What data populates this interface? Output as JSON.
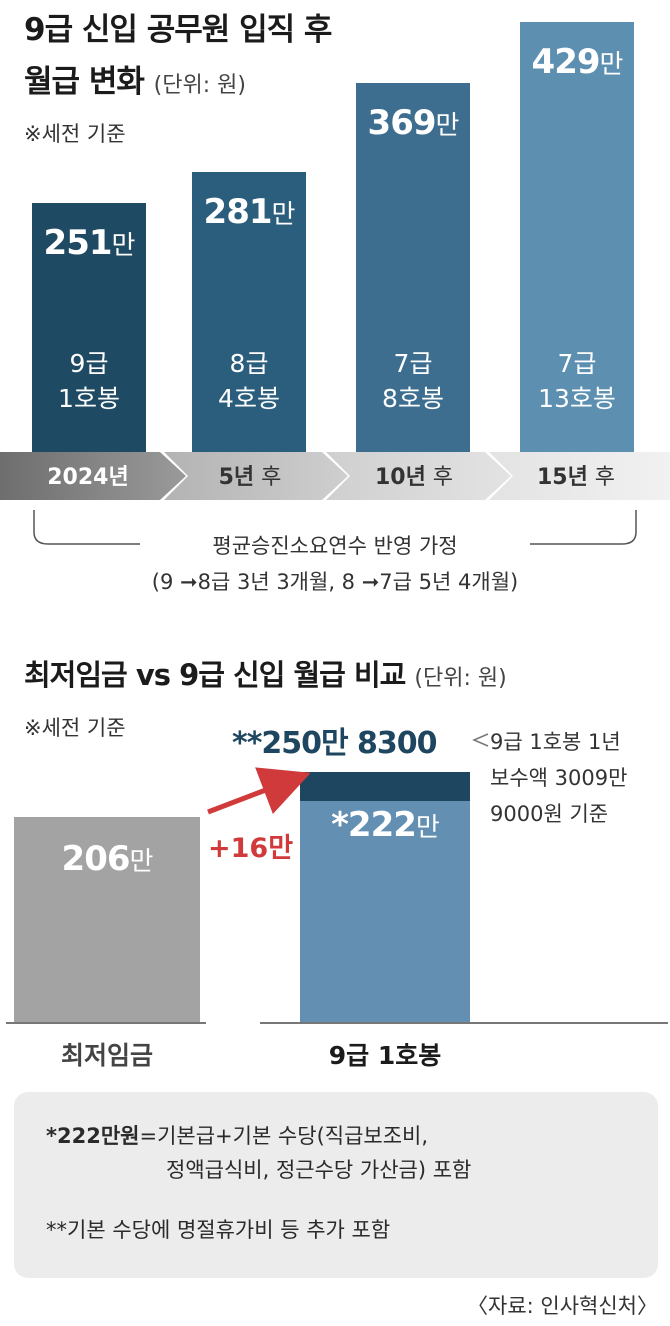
{
  "chart1": {
    "title_line1": "9급 신입 공무원 입직 후",
    "title_line2": "월급 변화",
    "unit": "(단위: 원)",
    "note": "※세전 기준",
    "assumption_line1": "평균승진소요연수 반영 가정",
    "assumption_line2": "(9 ➞8급 3년 3개월, 8 ➞7급 5년 4개월)"
  },
  "chart2": {
    "title": "최저임금 vs 9급 신입 월급 비교",
    "unit": "(단위: 원)",
    "note": "※세전 기준",
    "increase_label": "+16만",
    "total_label": "**250만 8300",
    "total_note_line1": "9급 1호봉 1년",
    "total_note_line2": "보수액 3009만",
    "total_note_line3": "9000원 기준"
  },
  "footnotes": {
    "fn1_bold": "*222만원",
    "fn1_text": "=기본급+기본 수당(직급보조비,",
    "fn1_line2": "정액급식비, 정근수당 가산금) 포함",
    "fn2": "**기본 수당에 명절휴가비 등 추가 포함"
  },
  "source": "〈자료: 인사혁신처〉",
  "chart_data": [
    {
      "type": "bar",
      "title": "9급 신입 공무원 입직 후 월급 변화",
      "unit": "원",
      "categories": [
        "2024년",
        "5년 후",
        "10년 후",
        "15년 후"
      ],
      "values": [
        2510000,
        2810000,
        3690000,
        4290000
      ],
      "value_labels": [
        "251만",
        "281만",
        "369만",
        "429만"
      ],
      "grade_line1": [
        "9급",
        "8급",
        "7급",
        "7급"
      ],
      "grade_line2": [
        "1호봉",
        "4호봉",
        "8호봉",
        "13호봉"
      ],
      "colors": [
        "#1f4a63",
        "#2b5d7d",
        "#3d6e90",
        "#5d8fb1"
      ],
      "ylim": [
        0,
        4290000
      ]
    },
    {
      "type": "bar",
      "title": "최저임금 vs 9급 신입 월급 비교",
      "unit": "원",
      "categories": [
        "최저임금",
        "9급 1호봉"
      ],
      "values": [
        2060000,
        2220000
      ],
      "value_labels": [
        "206만",
        "*222만"
      ],
      "stacked_total": 2508300,
      "colors": [
        "#a3a3a3",
        "#6390b2"
      ],
      "top_segment_color": "#1e4660",
      "ylim": [
        0,
        2508300
      ]
    }
  ]
}
